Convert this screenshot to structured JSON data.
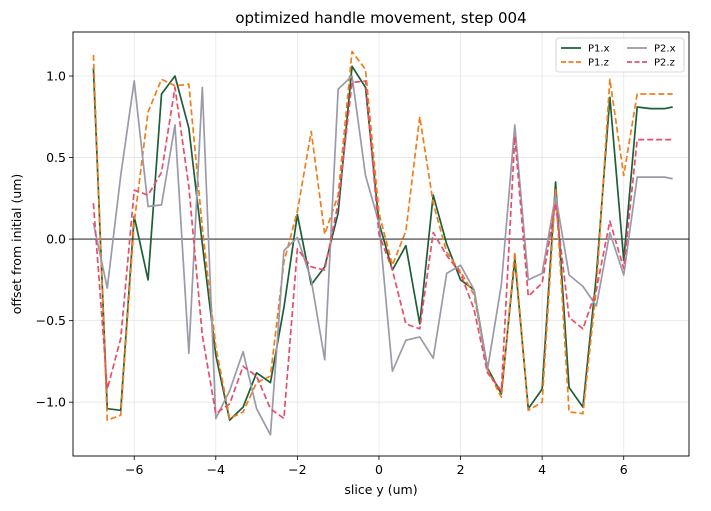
{
  "chart_data": {
    "type": "line",
    "title": "optimized handle movement, step 004",
    "xlabel": "slice y (um)",
    "ylabel": "offset from initial (um)",
    "xlim": [
      -7.5,
      7.6
    ],
    "ylim": [
      -1.33,
      1.27
    ],
    "xticks": [
      -6,
      -4,
      -2,
      0,
      2,
      4,
      6
    ],
    "yticks": [
      -1.0,
      -0.5,
      0.0,
      0.5,
      1.0
    ],
    "xtick_labels": [
      "−6",
      "−4",
      "−2",
      "0",
      "2",
      "4",
      "6"
    ],
    "ytick_labels": [
      "−1.0",
      "−0.5",
      "0.0",
      "0.5",
      "1.0"
    ],
    "grid": true,
    "zero_line": true,
    "legend_position": "top-right",
    "legend_columns": 2,
    "x": [
      -7.0,
      -6.66,
      -6.33,
      -6.0,
      -5.66,
      -5.33,
      -5.0,
      -4.66,
      -4.33,
      -4.0,
      -3.66,
      -3.33,
      -3.0,
      -2.66,
      -2.33,
      -2.0,
      -1.66,
      -1.33,
      -1.0,
      -0.66,
      -0.33,
      0.0,
      0.33,
      0.66,
      1.0,
      1.33,
      1.66,
      2.0,
      2.33,
      2.66,
      3.0,
      3.33,
      3.66,
      4.0,
      4.33,
      4.66,
      5.0,
      5.33,
      5.66,
      6.0,
      6.33,
      6.66,
      7.0,
      7.2
    ],
    "series": [
      {
        "name": "P1.x",
        "color": "#1e5e38",
        "dash": "none",
        "values": [
          1.05,
          -1.04,
          -1.05,
          0.14,
          -0.25,
          0.89,
          1.0,
          0.68,
          -0.03,
          -0.71,
          -1.11,
          -1.03,
          -0.82,
          -0.88,
          -0.42,
          0.15,
          -0.28,
          -0.17,
          0.16,
          1.06,
          0.93,
          0.1,
          -0.19,
          -0.04,
          -0.52,
          0.27,
          -0.03,
          -0.25,
          -0.31,
          -0.79,
          -0.95,
          -0.12,
          -1.04,
          -0.92,
          0.35,
          -0.91,
          -1.03,
          -0.22,
          0.87,
          -0.13,
          0.81,
          0.8,
          0.8,
          0.81
        ]
      },
      {
        "name": "P1.z",
        "color": "#f07e1a",
        "dash": "6,3",
        "values": [
          1.13,
          -1.11,
          -1.08,
          0.1,
          0.78,
          0.98,
          0.94,
          0.95,
          0.07,
          -0.66,
          -1.1,
          -1.06,
          -0.88,
          -0.84,
          -0.14,
          0.17,
          0.66,
          0.03,
          0.27,
          1.15,
          1.04,
          0.16,
          -0.16,
          0.05,
          0.75,
          0.22,
          -0.08,
          -0.2,
          -0.34,
          -0.8,
          -0.97,
          -0.08,
          -1.05,
          -1.0,
          0.31,
          -1.06,
          -1.07,
          -0.3,
          0.98,
          0.39,
          0.89,
          0.89,
          0.89,
          0.89
        ]
      },
      {
        "name": "P2.x",
        "color": "#9b9aa8",
        "dash": "none",
        "values": [
          0.1,
          -0.3,
          0.39,
          0.97,
          0.2,
          0.21,
          0.7,
          -0.7,
          0.93,
          -1.1,
          -0.93,
          -0.69,
          -1.04,
          -1.2,
          -0.07,
          0.01,
          -0.25,
          -0.74,
          0.92,
          1.0,
          0.39,
          0.1,
          -0.81,
          -0.62,
          -0.6,
          -0.73,
          -0.21,
          -0.16,
          -0.31,
          -0.8,
          -0.28,
          0.7,
          -0.25,
          -0.21,
          0.27,
          -0.22,
          -0.29,
          -0.41,
          0.04,
          -0.22,
          0.38,
          0.38,
          0.38,
          0.37
        ]
      },
      {
        "name": "P2.z",
        "color": "#e74e6b",
        "dash": "6,3",
        "values": [
          0.22,
          -0.92,
          -0.61,
          0.3,
          0.27,
          0.41,
          0.93,
          0.32,
          -0.59,
          -1.07,
          -1.01,
          -0.78,
          -0.84,
          -1.04,
          -1.1,
          -0.06,
          -0.17,
          -0.19,
          0.22,
          0.96,
          0.97,
          0.03,
          -0.19,
          -0.52,
          -0.55,
          0.04,
          -0.1,
          -0.21,
          -0.43,
          -0.82,
          -0.93,
          0.63,
          -0.35,
          -0.27,
          0.22,
          -0.48,
          -0.55,
          -0.31,
          0.11,
          -0.18,
          0.61,
          0.61,
          0.61,
          0.61
        ]
      }
    ]
  }
}
